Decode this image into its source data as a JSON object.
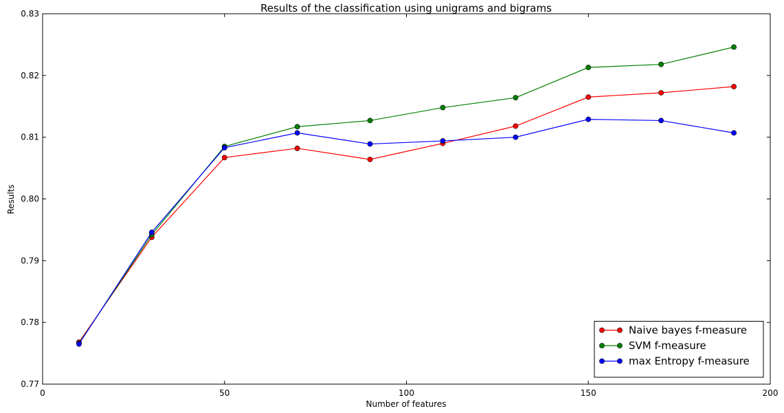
{
  "chart_data": {
    "type": "line",
    "title": "Results of the classification using unigrams and bigrams",
    "xlabel": "Number of features",
    "ylabel": "Results",
    "xlim": [
      0,
      200
    ],
    "ylim": [
      0.77,
      0.83
    ],
    "x_ticks": [
      0,
      50,
      100,
      150,
      200
    ],
    "x_tick_labels": [
      "0",
      "50",
      "100",
      "150",
      "200"
    ],
    "y_ticks": [
      0.77,
      0.78,
      0.79,
      0.8,
      0.81,
      0.82,
      0.83
    ],
    "y_tick_labels": [
      "0.77",
      "0.78",
      "0.79",
      "0.80",
      "0.81",
      "0.82",
      "0.83"
    ],
    "grid": false,
    "legend_position": "bottom-right",
    "x": [
      10,
      30,
      50,
      70,
      90,
      110,
      130,
      150,
      170,
      190
    ],
    "series": [
      {
        "name": "Naive bayes f-measure",
        "color": "#ff0000",
        "values": [
          0.7768,
          0.7938,
          0.8067,
          0.8082,
          0.8064,
          0.809,
          0.8118,
          0.8165,
          0.8172,
          0.8182
        ]
      },
      {
        "name": "SVM f-measure",
        "color": "#008000",
        "values": [
          0.7766,
          0.7942,
          0.8085,
          0.8117,
          0.8127,
          0.8148,
          0.8164,
          0.8213,
          0.8218,
          0.8246
        ]
      },
      {
        "name": "max Entropy f-measure",
        "color": "#0000ff",
        "values": [
          0.7765,
          0.7946,
          0.8083,
          0.8107,
          0.8089,
          0.8094,
          0.81,
          0.8129,
          0.8127,
          0.8107
        ]
      }
    ]
  }
}
